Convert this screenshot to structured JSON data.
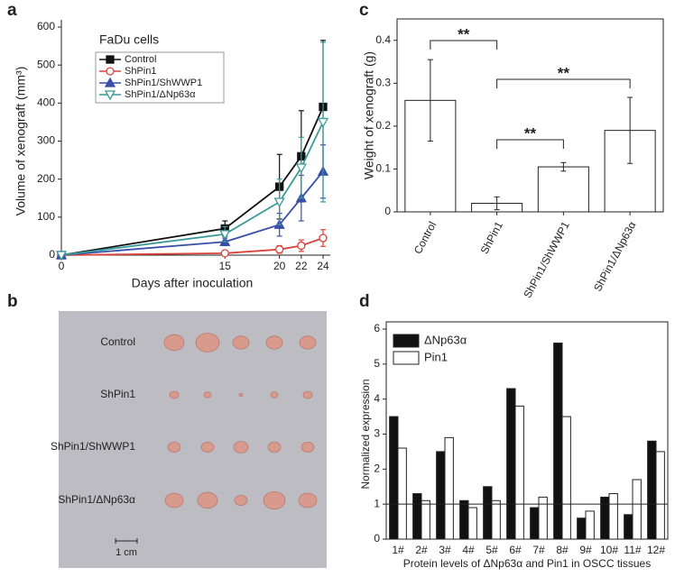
{
  "chart_data": [
    {
      "type": "line",
      "label": "a",
      "annotation": "FaDu cells",
      "x_label": "Days after inoculation",
      "y_label": "Volume of xenograft (mm³)",
      "x": [
        0,
        15,
        20,
        22,
        24
      ],
      "xlim": [
        0,
        24
      ],
      "xticks": [
        0,
        15,
        20,
        22,
        24
      ],
      "ylim": [
        0,
        600
      ],
      "yticks": [
        0,
        100,
        200,
        300,
        400,
        500,
        600
      ],
      "series": [
        {
          "name": "Control",
          "color": "#111111",
          "marker": "square",
          "filled": true,
          "values": [
            0,
            70,
            180,
            260,
            390
          ],
          "errors": [
            0,
            20,
            85,
            120,
            175
          ]
        },
        {
          "name": "ShPin1",
          "color": "#d9433c",
          "marker": "circle",
          "filled": false,
          "values": [
            0,
            5,
            15,
            25,
            45
          ],
          "errors": [
            0,
            3,
            10,
            15,
            22
          ]
        },
        {
          "name": "ShPin1/ShWWP1",
          "color": "#3a4fa8",
          "marker": "triangle",
          "filled": true,
          "values": [
            0,
            35,
            80,
            150,
            220
          ],
          "errors": [
            0,
            10,
            30,
            60,
            70
          ]
        },
        {
          "name": "ShPin1/ΔNp63α",
          "color": "#3a9a98",
          "marker": "triangle-down",
          "filled": false,
          "values": [
            0,
            55,
            140,
            230,
            350
          ],
          "errors": [
            0,
            20,
            60,
            80,
            210
          ]
        }
      ]
    },
    {
      "type": "image",
      "label": "b",
      "row_labels": [
        "Control",
        "ShPin1",
        "ShPin1/ShWWP1",
        "ShPin1/ΔNp63α"
      ],
      "scale_label": "1 cm"
    },
    {
      "type": "bar",
      "label": "c",
      "y_label": "Weight of xenograft (g)",
      "categories": [
        "Control",
        "ShPin1",
        "ShPin1/ShWWP1",
        "ShPin1/ΔNp63α"
      ],
      "values": [
        0.26,
        0.02,
        0.105,
        0.19
      ],
      "errors": [
        0.095,
        0.015,
        0.01,
        0.077
      ],
      "color": "#ffffff",
      "ylim": [
        0,
        0.45
      ],
      "yticks": [
        0,
        0.1,
        0.2,
        0.3,
        0.4
      ],
      "annotations": [
        "**",
        "**",
        "**"
      ]
    },
    {
      "type": "grouped-bar",
      "label": "d",
      "x_label": "Protein levels of ΔNp63α and Pin1 in OSCC tissues",
      "y_label": "Normalized expression",
      "categories": [
        "1#",
        "2#",
        "3#",
        "4#",
        "5#",
        "6#",
        "7#",
        "8#",
        "9#",
        "10#",
        "11#",
        "12#"
      ],
      "ylim": [
        0,
        6
      ],
      "yticks": [
        0,
        1,
        2,
        3,
        4,
        5,
        6
      ],
      "reference_line": 1,
      "series": [
        {
          "name": "ΔNp63α",
          "color": "#111111",
          "values": [
            3.5,
            1.3,
            2.5,
            1.1,
            1.5,
            4.3,
            0.9,
            5.6,
            0.6,
            1.2,
            0.7,
            2.8
          ]
        },
        {
          "name": "Pin1",
          "color": "#ffffff",
          "values": [
            2.6,
            1.1,
            2.9,
            0.9,
            1.1,
            3.8,
            1.2,
            3.5,
            0.8,
            1.3,
            1.7,
            2.5
          ]
        }
      ]
    }
  ]
}
